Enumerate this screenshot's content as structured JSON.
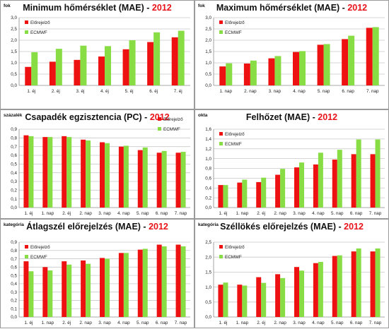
{
  "legend": {
    "series_names": [
      "Előrejelző",
      "ECMWF"
    ],
    "colors": [
      "#ee1111",
      "#88dd44"
    ]
  },
  "chart_data": [
    {
      "type": "bar",
      "title": "Minimum hőmérséklet (MAE) - ",
      "title_year": "2012",
      "ylabel": "fok",
      "categories": [
        "1. éj",
        "2. éj",
        "3. éj",
        "4. éj",
        "5. éj",
        "6. éj",
        "7. éj"
      ],
      "ylim": [
        0,
        3
      ],
      "yticks": [
        "0,0",
        "0,5",
        "1,0",
        "1,5",
        "2,0",
        "2,5",
        "3,0"
      ],
      "ytick_values": [
        0,
        0.5,
        1.0,
        1.5,
        2.0,
        2.5,
        3.0
      ],
      "series": [
        {
          "name": "Előrejelző",
          "values": [
            0.82,
            1.05,
            1.13,
            1.28,
            1.6,
            1.92,
            2.13
          ]
        },
        {
          "name": "ECMWF",
          "values": [
            1.47,
            1.62,
            1.76,
            1.74,
            2.0,
            2.35,
            2.42
          ]
        }
      ],
      "grid": true,
      "legend_position": "top-left"
    },
    {
      "type": "bar",
      "title": "Maximum hőmérséklet (MAE) - ",
      "title_year": "2012",
      "ylabel": "fok",
      "categories": [
        "1. nap",
        "2. nap",
        "3. nap",
        "4. nap",
        "5. nap",
        "6. nap",
        "7. nap"
      ],
      "ylim": [
        0,
        3
      ],
      "yticks": [
        "0,0",
        "0,5",
        "1,0",
        "1,5",
        "2,0",
        "2,5",
        "3,0"
      ],
      "ytick_values": [
        0,
        0.5,
        1.0,
        1.5,
        2.0,
        2.5,
        3.0
      ],
      "series": [
        {
          "name": "Előrejelző",
          "values": [
            0.84,
            0.97,
            1.2,
            1.48,
            1.8,
            2.05,
            2.55
          ]
        },
        {
          "name": "ECMWF",
          "values": [
            0.98,
            1.1,
            1.3,
            1.52,
            1.83,
            2.2,
            2.58
          ]
        }
      ],
      "grid": true,
      "legend_position": "top-left"
    },
    {
      "type": "bar",
      "title": "Csapadék egzisztencia (PC) - ",
      "title_year": "2012",
      "ylabel": "százalék",
      "categories": [
        "1. éj",
        "1. nap",
        "2. éj",
        "2. nap",
        "3. nap",
        "4. nap",
        "5. nap",
        "6. nap",
        "7. nap"
      ],
      "ylim": [
        0,
        0.9
      ],
      "yticks": [
        "0,0",
        "0,1",
        "0,2",
        "0,3",
        "0,4",
        "0,5",
        "0,6",
        "0,7",
        "0,8",
        "0,9"
      ],
      "ytick_values": [
        0,
        0.1,
        0.2,
        0.3,
        0.4,
        0.5,
        0.6,
        0.7,
        0.8,
        0.9
      ],
      "series": [
        {
          "name": "Előrejelző",
          "values": [
            0.83,
            0.81,
            0.82,
            0.78,
            0.75,
            0.7,
            0.66,
            0.63,
            0.63
          ]
        },
        {
          "name": "ECMWF",
          "values": [
            0.82,
            0.81,
            0.81,
            0.77,
            0.74,
            0.71,
            0.69,
            0.65,
            0.64
          ]
        }
      ],
      "grid": true,
      "legend_position": "top-right"
    },
    {
      "type": "bar",
      "title": "Felhőzet (MAE) - ",
      "title_year": "2012",
      "ylabel": "okta",
      "categories": [
        "1. éj",
        "1. nap",
        "2. éj",
        "2. nap",
        "3. nap",
        "4. nap",
        "5. nap",
        "6. nap",
        "7. nap"
      ],
      "ylim": [
        0,
        1.6
      ],
      "yticks": [
        "0,0",
        "0,2",
        "0,4",
        "0,6",
        "0,8",
        "1,0",
        "1,2",
        "1,4",
        "1,6"
      ],
      "ytick_values": [
        0,
        0.2,
        0.4,
        0.6,
        0.8,
        1.0,
        1.2,
        1.4,
        1.6
      ],
      "series": [
        {
          "name": "Előrejelző",
          "values": [
            0.46,
            0.51,
            0.52,
            0.67,
            0.82,
            0.88,
            0.98,
            1.09,
            1.09
          ]
        },
        {
          "name": "ECMWF",
          "values": [
            0.46,
            0.57,
            0.61,
            0.79,
            0.92,
            1.12,
            1.18,
            1.39,
            1.39
          ]
        }
      ],
      "grid": true,
      "legend_position": "top-left"
    },
    {
      "type": "bar",
      "title": "Átlagszél előrejelzés (MAE) - ",
      "title_year": "2012",
      "ylabel": "kategória",
      "categories": [
        "1. éj",
        "1. nap",
        "2. éj",
        "2. nap",
        "3. nap",
        "4. nap",
        "5. nap",
        "6. nap",
        "7. nap"
      ],
      "ylim": [
        0,
        0.9
      ],
      "yticks": [
        "0,0",
        "0,1",
        "0,2",
        "0,3",
        "0,4",
        "0,5",
        "0,6",
        "0,7",
        "0,8",
        "0,9"
      ],
      "ytick_values": [
        0,
        0.1,
        0.2,
        0.3,
        0.4,
        0.5,
        0.6,
        0.7,
        0.8,
        0.9
      ],
      "series": [
        {
          "name": "Előrejelző",
          "values": [
            0.67,
            0.6,
            0.67,
            0.68,
            0.71,
            0.77,
            0.81,
            0.87,
            0.87
          ]
        },
        {
          "name": "ECMWF",
          "values": [
            0.55,
            0.56,
            0.63,
            0.64,
            0.7,
            0.77,
            0.82,
            0.85,
            0.85
          ]
        }
      ],
      "grid": true,
      "legend_position": "top-left"
    },
    {
      "type": "bar",
      "title": "Széllökés előrejelzés (MAE) - ",
      "title_year": "2012",
      "ylabel": "kategória",
      "categories": [
        "1. éj",
        "1. nap",
        "2. éj",
        "2. nap",
        "3. nap",
        "4. nap",
        "5. nap",
        "6. nap",
        "7. nap"
      ],
      "ylim": [
        0,
        2.5
      ],
      "yticks": [
        "0,0",
        "0,5",
        "1,0",
        "1,5",
        "2,0",
        "2,5"
      ],
      "ytick_values": [
        0,
        0.5,
        1.0,
        1.5,
        2.0,
        2.5
      ],
      "series": [
        {
          "name": "Előrejelző",
          "values": [
            1.08,
            1.08,
            1.33,
            1.43,
            1.67,
            1.8,
            2.04,
            2.19,
            2.19
          ]
        },
        {
          "name": "ECMWF",
          "values": [
            1.15,
            1.05,
            1.14,
            1.3,
            1.55,
            1.84,
            2.06,
            2.29,
            2.29
          ]
        }
      ],
      "grid": true,
      "legend_position": "top-left"
    }
  ]
}
